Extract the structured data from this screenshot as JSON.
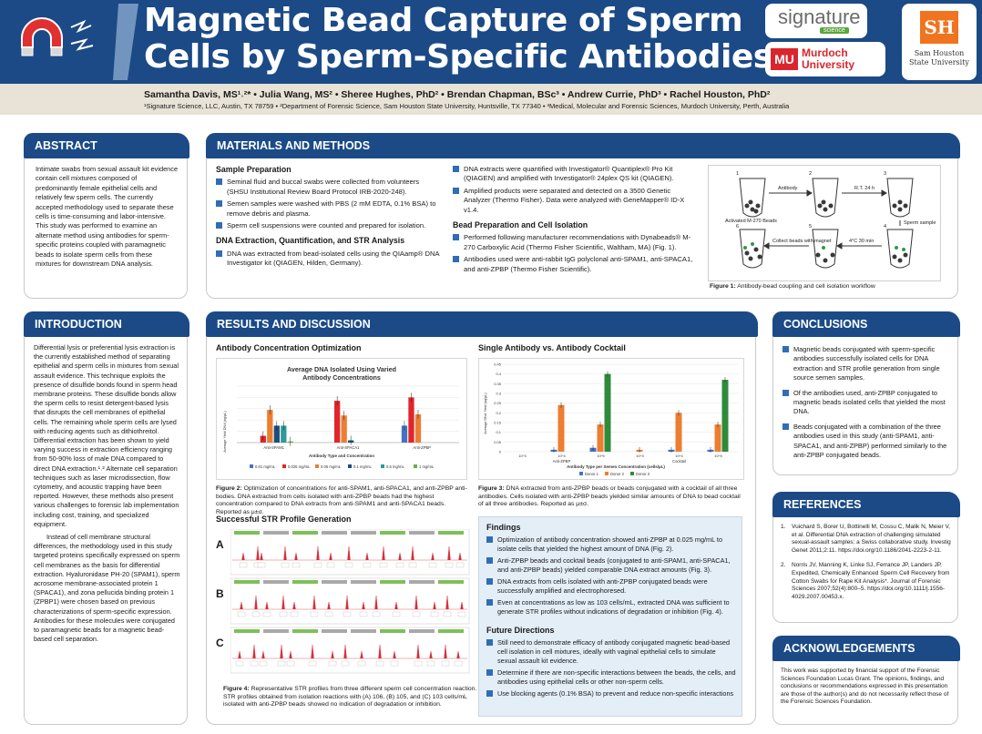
{
  "header": {
    "title_line1": "Magnetic Bead Capture of Sperm",
    "title_line2": "Cells by Sperm-Specific Antibodies",
    "authors": "Samantha Davis, MS¹˒²* • Julia Wang, MS² • Sheree Hughes, PhD² • Brendan Chapman, BSc³ • Andrew Currie, PhD³ • Rachel Houston, PhD²",
    "affiliations": "¹Signature Science, LLC, Austin, TX 78759 • ²Department of Forensic Science, Sam Houston State University, Huntsville, TX 77340 • ³Medical, Molecular and Forensic Sciences, Murdoch University, Perth, Australia",
    "logos": {
      "signature": "signature",
      "signature_sub": "science",
      "murdoch": "Murdoch University",
      "murdoch_mark": "MU",
      "shsu": "Sam Houston State University",
      "shsu_mark": "SH"
    }
  },
  "abstract": {
    "heading": "ABSTRACT",
    "text": "Intimate swabs from sexual assault kit evidence contain cell mixtures composed of predominantly female epithelial cells and relatively few sperm cells. The currently accepted methodology used to separate these cells is time-consuming and labor-intensive. This study was performed to examine an alternate method using antibodies for sperm-specific proteins coupled with paramagnetic beads to isolate sperm cells from these mixtures for downstream DNA analysis."
  },
  "methods": {
    "heading": "MATERIALS AND METHODS",
    "sample_prep_title": "Sample Preparation",
    "sample_prep": [
      "Seminal fluid and buccal swabs were collected from volunteers (SHSU Institutional Review Board Protocol IRB-2020-248).",
      "Semen samples were washed with PBS (2 mM EDTA, 0.1% BSA) to remove debris and plasma.",
      "Sperm cell suspensions were counted and prepared for isolation."
    ],
    "dna_title": "DNA Extraction, Quantification, and STR Analysis",
    "dna": [
      "DNA was extracted from bead-isolated cells using the QIAamp® DNA Investigator kit (QIAGEN, Hilden, Germany).",
      "DNA extracts were quantified with Investigator® Quantiplex® Pro Kit (QIAGEN) and amplified with Investigator® 24plex QS kit (QIAGEN).",
      "Amplified products were separated and detected on a 3500 Genetic Analyzer (Thermo Fisher). Data were analyzed with GeneMapper® ID-X v1.4."
    ],
    "bead_title": "Bead Preparation and Cell Isolation",
    "bead": [
      "Performed following manufacturer recommendations with Dynabeads® M-270 Carboxylic Acid (Thermo Fisher Scientific, Waltham, MA) (Fig. 1).",
      "Antibodies used were anti-rabbit IgG polyclonal anti-SPAM1, anti-SPACA1, and anti-ZPBP (Thermo Fisher Scientific)."
    ],
    "fig1": {
      "labels": [
        "1",
        "2",
        "3",
        "4",
        "5",
        "6"
      ],
      "step_labels": [
        "Antibody",
        "R.T. 24 h",
        "Sperm sample",
        "4°C 30 min",
        "Collect beads with magnet"
      ],
      "beads_label": "Activated M-270 Beads",
      "caption_bold": "Figure 1:",
      "caption": " Antibody-bead coupling and cell isolation workflow"
    }
  },
  "introduction": {
    "heading": "INTRODUCTION",
    "p1": "Differential lysis or preferential lysis extraction is the currently established method of separating epithelial and sperm cells in mixtures from sexual assault evidence. This technique exploits the presence of disulfide bonds found in sperm head membrane proteins. These disulfide bonds allow the sperm cells to resist detergent-based lysis that disrupts the cell membranes of epithelial cells. The remaining whole sperm cells are lysed with reducing agents such as dithiothreitol. Differential extraction has been shown to yield varying success in extraction efficiency ranging from 50-90% loss of male DNA compared to direct DNA extraction.¹˒² Alternate cell separation techniques such as laser microdissection, flow cytometry, and acoustic trapping have been reported. However, these methods also present various challenges to forensic lab implementation including cost, training, and specialized equipment.",
    "p2": "Instead of cell membrane structural differences, the methodology used in this study targeted proteins specifically expressed on sperm cell membranes as the basis for differential extraction. Hyaluronidase PH-20 (SPAM1), sperm acrosome membrane-associated protein 1 (SPACA1), and zona pellucida binding protein 1 (ZPBP1) were chosen based on previous characterizations of sperm-specific expression. Antibodies for these molecules were conjugated to paramagnetic beads for a magnetic bead-based cell separation."
  },
  "results": {
    "heading": "RESULTS AND DISCUSSION",
    "ab_conc_title": "Antibody Concentration Optimization",
    "single_vs_cocktail_title": "Single Antibody vs. Antibody Cocktail",
    "str_title": "Successful STR Profile Generation",
    "fig2_caption_bold": "Figure 2:",
    "fig2_caption": " Optimization of concentrations for anti-SPAM1, anti-SPACA1, and anti-ZPBP anti-bodies. DNA extracted from cells isolated with anti-ZPBP beads had the highest concentration compared to DNA extracts from anti-SPAM1 and anti-SPACA1 beads. Reported as µ±σ.",
    "fig3_caption_bold": "Figure 3:",
    "fig3_caption": " DNA extracted from anti-ZPBP beads or beads conjugated with a cocktail of all three antibodies. Cells isolated with anti-ZPBP beads yielded similar amounts of DNA to bead cocktail of all three antibodies. Reported as µ±σ.",
    "fig4_caption_bold": "Figure 4:",
    "fig4_caption": " Representative STR profiles from three different sperm cell concentration reaction. STR profiles obtained from isolation reactions with (A) 106, (B) 105, and (C) 103 cells/mL isolated with anti-ZPBP beads showed no indication of degradation or inhibition.",
    "str_rows": [
      "A",
      "B",
      "C"
    ],
    "findings_title": "Findings",
    "findings": [
      "Optimization of antibody concentration showed anti-ZPBP at 0.025 mg/mL to isolate cells that yielded the highest amount of DNA (Fig. 2).",
      "Anti-ZPBP beads and cocktail beads (conjugated to anti-SPAM1, anti-SPACA1, and anti-ZPBP beads) yielded comparable DNA extract amounts (Fig. 3).",
      "DNA extracts from cells isolated with anti-ZPBP conjugated beads were successfully amplified and electrophoresed.",
      "Even at concentrations as low as 103 cells/mL, extracted DNA was sufficient to generate STR profiles without indications of degradation or inhibition (Fig. 4)."
    ],
    "future_title": "Future Directions",
    "future": [
      "Still need to demonstrate efficacy of antibody conjugated magnetic bead-based cell isolation in cell mixtures, ideally with vaginal epithelial cells to simulate sexual assault kit evidence.",
      "Determine if there are non-specific interactions between the beads, the cells, and antibodies using epithelial cells or other non-sperm cells.",
      "Use blocking agents (0.1% BSA) to prevent and reduce non-specific interactions"
    ]
  },
  "conclusions": {
    "heading": "CONCLUSIONS",
    "items": [
      "Magnetic beads conjugated with sperm-specific antibodies successfully isolated cells for DNA extraction and STR profile generation from single source semen samples.",
      "Of the antibodies used, anti-ZPBP conjugated to magnetic beads isolated cells that yielded the most DNA.",
      "Beads conjugated with a combination of the three antibodies used in this study (anti-SPAM1, anti-SPACA1, and anti-ZPBP) performed similarly to the anti-ZPBP conjugated beads."
    ]
  },
  "references": {
    "heading": "REFERENCES",
    "items": [
      "Vuichard S, Borer U, Bottinelli M, Cossu C, Malik N, Meier V, et al. Differential DNA extraction of challenging simulated sexual-assault samples: a Swiss collaborative study. Investig Genet 2011;2:11. https://doi.org/10.1186/2041-2223-2-11.",
      "Norris JV, Manning K, Linke SJ, Ferrance JP, Landers JP. Expedited, Chemically Enhanced Sperm Cell Recovery from Cotton Swabs for Rape Kit Analysis*. Journal of Forensic Sciences 2007;52(4):800–5. https://doi.org/10.1111/j.1556-4029.2007.00453.x."
    ]
  },
  "acknowledgements": {
    "heading": "ACKNOWLEDGEMENTS",
    "text": "This work was supported by financial support of the Forensic Sciences Foundation Lucas Grant. The opinions, findings, and conclusions or recommendations expressed in this presentation are those of the author(s) and do not necessarily reflect those of the Forensic Sciences Foundation."
  },
  "chart_data": [
    {
      "type": "bar",
      "title": "Average DNA Isolated Using Varied Antibody Concentrations",
      "xlabel": "Antibody Type and Concentration",
      "ylabel": "Average Yield DNA (ng/µL)",
      "categories": [
        "Anti-SPAM1",
        "Anti-SPACA1",
        "Anti-ZPBP"
      ],
      "ylim": [
        0,
        2.5
      ],
      "series": [
        {
          "name": "0.01 mg/mL",
          "color": "#4472c4",
          "values": [
            0.0,
            0.0,
            0.75
          ]
        },
        {
          "name": "0.025 mg/mL",
          "color": "#e0262a",
          "values": [
            0.3,
            1.85,
            2.0
          ]
        },
        {
          "name": "0.05 mg/mL",
          "color": "#ed7d31",
          "values": [
            1.45,
            1.2,
            1.25
          ]
        },
        {
          "name": "0.1 mg/mL",
          "color": "#1f4e79",
          "values": [
            0.75,
            0.1,
            0.0
          ]
        },
        {
          "name": "0.5 mg/mL",
          "color": "#2e9a9a",
          "values": [
            0.75,
            0.0,
            0.0
          ]
        },
        {
          "name": "1 mg/mL",
          "color": "#70ad47",
          "values": [
            0.05,
            0.0,
            0.0
          ]
        }
      ]
    },
    {
      "type": "bar",
      "title": "",
      "xlabel": "Antibody Type per Semen Concentration (cells/µL)",
      "ylabel": "Average DNA Yield (ng/µL)",
      "yticks": [
        "0",
        "0.05",
        "0.1",
        "0.15",
        "0.2",
        "0.25",
        "0.3",
        "0.35",
        "0.4",
        "0.45"
      ],
      "ylim": [
        0,
        0.45
      ],
      "groups": [
        "Anti-ZPBP",
        "Cocktail"
      ],
      "categories": [
        "10^3",
        "10^4",
        "10^5",
        "10^3",
        "10^4",
        "10^5"
      ],
      "series": [
        {
          "name": "Donor 1",
          "color": "#4472c4",
          "values": [
            0.0,
            0.01,
            0.02,
            0.0,
            0.01,
            0.01
          ]
        },
        {
          "name": "Donor 2",
          "color": "#ed7d31",
          "values": [
            0.0,
            0.24,
            0.14,
            0.01,
            0.2,
            0.14
          ]
        },
        {
          "name": "Donor 3",
          "color": "#2e8b3a",
          "values": [
            0.0,
            0.0,
            0.4,
            0.0,
            0.0,
            0.37
          ]
        }
      ]
    }
  ]
}
